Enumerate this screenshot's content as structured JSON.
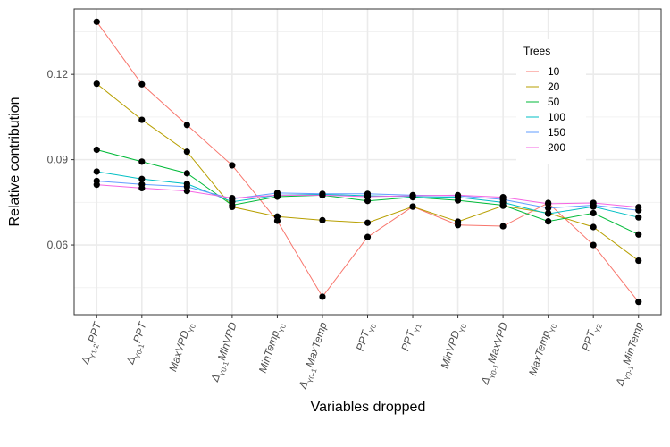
{
  "chart_data": {
    "type": "line",
    "xlabel": "Variables dropped",
    "ylabel": "Relative contribution",
    "yticks": [
      0.06,
      0.09,
      0.12
    ],
    "ytick_labels": [
      "0.06",
      "0.09",
      "0.12"
    ],
    "ylim": [
      0.0355,
      0.143
    ],
    "grid": true,
    "legend": {
      "title": "Trees",
      "position": "top-right"
    },
    "categories": [
      "Δ_{Y1-2}PPT",
      "Δ_{Y0-1}PPT",
      "MaxVPD_{Y0}",
      "Δ_{Y0-1}MinVPD",
      "MinTemp_{Y0}",
      "Δ_{Y0-1}MaxTemp",
      "PPT_{Y0}",
      "PPT_{Y1}",
      "MinVPD_{Y0}",
      "Δ_{Y0-1}MaxVPD",
      "MaxTemp_{Y0}",
      "PPT_{Y2}",
      "Δ_{Y0-1}MinTemp"
    ],
    "series": [
      {
        "name": "10",
        "color": "#F8766D",
        "values": [
          0.1385,
          0.1165,
          0.1022,
          0.088,
          0.0685,
          0.0418,
          0.0628,
          0.0735,
          0.067,
          0.0666,
          0.0748,
          0.06,
          0.04
        ]
      },
      {
        "name": "20",
        "color": "#B79F00",
        "values": [
          0.1167,
          0.104,
          0.0928,
          0.0734,
          0.07,
          0.0687,
          0.0678,
          0.0735,
          0.0682,
          0.0738,
          0.0712,
          0.0663,
          0.0545
        ]
      },
      {
        "name": "50",
        "color": "#00BA38",
        "values": [
          0.0935,
          0.0893,
          0.0852,
          0.074,
          0.077,
          0.0775,
          0.0755,
          0.0768,
          0.0757,
          0.074,
          0.0683,
          0.0712,
          0.0637
        ]
      },
      {
        "name": "100",
        "color": "#00BFC4",
        "values": [
          0.0858,
          0.0832,
          0.0815,
          0.0752,
          0.0775,
          0.0778,
          0.0773,
          0.077,
          0.0768,
          0.075,
          0.071,
          0.0735,
          0.0697
        ]
      },
      {
        "name": "150",
        "color": "#619CFF",
        "values": [
          0.0825,
          0.0813,
          0.0805,
          0.0762,
          0.0783,
          0.078,
          0.078,
          0.0775,
          0.0773,
          0.076,
          0.073,
          0.074,
          0.0722
        ]
      },
      {
        "name": "200",
        "color": "#F564E3",
        "values": [
          0.0812,
          0.08,
          0.079,
          0.0765,
          0.0775,
          0.0775,
          0.077,
          0.0773,
          0.0775,
          0.0768,
          0.0745,
          0.0748,
          0.0733
        ]
      }
    ]
  }
}
